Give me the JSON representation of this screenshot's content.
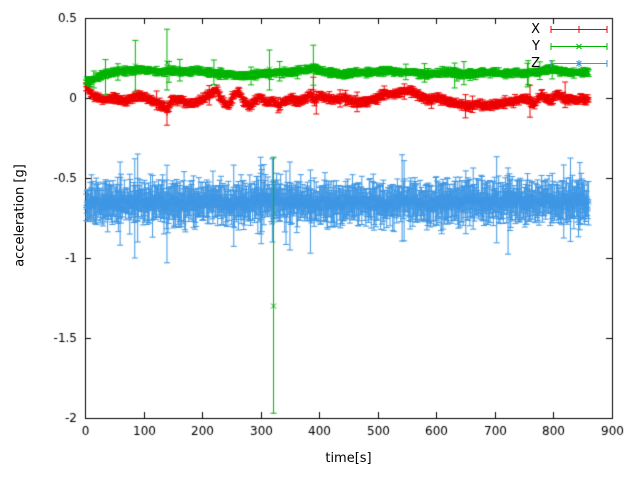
{
  "chart_data": {
    "type": "scatter",
    "style": "points with errorbars",
    "title": "",
    "xlabel": "time[s]",
    "ylabel": "acceleration [g]",
    "xlim": [
      0,
      900
    ],
    "ylim": [
      -2,
      0.5
    ],
    "xticks": {
      "values": [
        0,
        100,
        200,
        300,
        400,
        500,
        600,
        700,
        800,
        900
      ],
      "labels": [
        "0",
        "100",
        "200",
        "300",
        "400",
        "500",
        "600",
        "700",
        "800",
        "900"
      ]
    },
    "yticks": {
      "values": [
        0.5,
        0,
        -0.5,
        -1,
        -1.5,
        -2
      ],
      "labels": [
        "0.5",
        "0",
        "-0.5",
        "-1",
        "-1.5",
        "-2"
      ]
    },
    "grid": false,
    "legend_position": "top-right-inside",
    "axis_color": "#000000",
    "background": "#ffffff",
    "noise_seed": 1337,
    "t_start": 2,
    "t_end": 860,
    "series": [
      {
        "name": "X",
        "color": "#ee0000",
        "marker": "plus",
        "n_points": 650,
        "noise": 0.008,
        "err_base": 0.01,
        "err_spread": 0.02,
        "tail_prob": 0.04,
        "tail_extra": 0.05,
        "anchors": [
          [
            0,
            0.09
          ],
          [
            8,
            0.04
          ],
          [
            15,
            0.01
          ],
          [
            30,
            -0.01
          ],
          [
            50,
            0.0
          ],
          [
            70,
            -0.02
          ],
          [
            85,
            0.01
          ],
          [
            100,
            0.01
          ],
          [
            115,
            -0.02
          ],
          [
            130,
            -0.04
          ],
          [
            140,
            -0.07
          ],
          [
            150,
            -0.01
          ],
          [
            165,
            -0.02
          ],
          [
            180,
            -0.04
          ],
          [
            195,
            -0.02
          ],
          [
            210,
            0.02
          ],
          [
            225,
            0.05
          ],
          [
            235,
            -0.02
          ],
          [
            245,
            -0.05
          ],
          [
            255,
            0.02
          ],
          [
            262,
            0.04
          ],
          [
            270,
            -0.02
          ],
          [
            280,
            -0.05
          ],
          [
            292,
            -0.01
          ],
          [
            300,
            0.01
          ],
          [
            310,
            -0.03
          ],
          [
            320,
            -0.01
          ],
          [
            330,
            -0.05
          ],
          [
            340,
            -0.02
          ],
          [
            352,
            0.0
          ],
          [
            362,
            -0.02
          ],
          [
            375,
            -0.01
          ],
          [
            385,
            0.03
          ],
          [
            392,
            -0.02
          ],
          [
            400,
            0.02
          ],
          [
            410,
            0.0
          ],
          [
            425,
            -0.01
          ],
          [
            440,
            0.0
          ],
          [
            455,
            -0.02
          ],
          [
            470,
            -0.03
          ],
          [
            485,
            -0.02
          ],
          [
            500,
            0.0
          ],
          [
            512,
            0.03
          ],
          [
            525,
            0.02
          ],
          [
            540,
            0.04
          ],
          [
            555,
            0.05
          ],
          [
            565,
            0.03
          ],
          [
            575,
            0.0
          ],
          [
            590,
            -0.01
          ],
          [
            605,
            0.0
          ],
          [
            620,
            -0.02
          ],
          [
            638,
            -0.04
          ],
          [
            655,
            -0.05
          ],
          [
            670,
            -0.04
          ],
          [
            688,
            -0.05
          ],
          [
            702,
            -0.04
          ],
          [
            715,
            -0.03
          ],
          [
            728,
            -0.02
          ],
          [
            742,
            -0.01
          ],
          [
            755,
            0.0
          ],
          [
            768,
            -0.04
          ],
          [
            778,
            0.02
          ],
          [
            788,
            0.0
          ],
          [
            797,
            -0.02
          ],
          [
            806,
            0.03
          ],
          [
            815,
            0.0
          ],
          [
            830,
            -0.01
          ],
          [
            845,
            -0.01
          ],
          [
            858,
            -0.01
          ]
        ],
        "outliers": [
          [
            140,
            -0.09,
            -0.17,
            -0.03
          ],
          [
            390,
            0.05,
            -0.02,
            0.13
          ],
          [
            395,
            -0.03,
            -0.1,
            0.04
          ],
          [
            760,
            -0.02,
            -0.12,
            0.08
          ],
          [
            820,
            0.02,
            -0.06,
            0.1
          ]
        ]
      },
      {
        "name": "Y",
        "color": "#00b400",
        "marker": "cross",
        "n_points": 650,
        "noise": 0.006,
        "err_base": 0.01,
        "err_spread": 0.018,
        "tail_prob": 0.03,
        "tail_extra": 0.06,
        "anchors": [
          [
            0,
            0.1
          ],
          [
            12,
            0.11
          ],
          [
            22,
            0.13
          ],
          [
            35,
            0.15
          ],
          [
            50,
            0.16
          ],
          [
            65,
            0.17
          ],
          [
            80,
            0.17
          ],
          [
            95,
            0.18
          ],
          [
            110,
            0.17
          ],
          [
            125,
            0.16
          ],
          [
            140,
            0.17
          ],
          [
            158,
            0.17
          ],
          [
            175,
            0.16
          ],
          [
            192,
            0.17
          ],
          [
            210,
            0.16
          ],
          [
            228,
            0.15
          ],
          [
            245,
            0.15
          ],
          [
            262,
            0.14
          ],
          [
            280,
            0.14
          ],
          [
            298,
            0.15
          ],
          [
            315,
            0.15
          ],
          [
            332,
            0.16
          ],
          [
            350,
            0.16
          ],
          [
            368,
            0.17
          ],
          [
            382,
            0.18
          ],
          [
            392,
            0.19
          ],
          [
            402,
            0.17
          ],
          [
            418,
            0.16
          ],
          [
            435,
            0.15
          ],
          [
            452,
            0.15
          ],
          [
            470,
            0.16
          ],
          [
            488,
            0.16
          ],
          [
            505,
            0.17
          ],
          [
            522,
            0.17
          ],
          [
            540,
            0.16
          ],
          [
            558,
            0.16
          ],
          [
            575,
            0.15
          ],
          [
            592,
            0.15
          ],
          [
            610,
            0.16
          ],
          [
            628,
            0.16
          ],
          [
            645,
            0.15
          ],
          [
            662,
            0.15
          ],
          [
            680,
            0.16
          ],
          [
            698,
            0.16
          ],
          [
            715,
            0.15
          ],
          [
            732,
            0.16
          ],
          [
            748,
            0.15
          ],
          [
            765,
            0.16
          ],
          [
            780,
            0.17
          ],
          [
            795,
            0.18
          ],
          [
            810,
            0.17
          ],
          [
            825,
            0.16
          ],
          [
            842,
            0.16
          ],
          [
            858,
            0.16
          ]
        ],
        "outliers": [
          [
            35,
            0.13,
            0.02,
            0.24
          ],
          [
            86,
            0.2,
            0.04,
            0.36
          ],
          [
            140,
            0.22,
            0.05,
            0.43
          ],
          [
            315,
            0.18,
            0.05,
            0.3
          ],
          [
            322,
            -1.3,
            -1.97,
            -0.37
          ],
          [
            390,
            0.2,
            0.08,
            0.33
          ]
        ]
      },
      {
        "name": "Z",
        "color": "#3f97e4",
        "marker": "star",
        "n_points": 750,
        "noise": 0.035,
        "err_base": 0.05,
        "err_spread": 0.09,
        "tail_prob": 0.06,
        "tail_extra": 0.18,
        "anchors": [
          [
            0,
            -0.66
          ],
          [
            30,
            -0.655
          ],
          [
            60,
            -0.66
          ],
          [
            90,
            -0.65
          ],
          [
            120,
            -0.66
          ],
          [
            150,
            -0.66
          ],
          [
            180,
            -0.655
          ],
          [
            210,
            -0.65
          ],
          [
            240,
            -0.655
          ],
          [
            270,
            -0.66
          ],
          [
            300,
            -0.64
          ],
          [
            320,
            -0.63
          ],
          [
            345,
            -0.65
          ],
          [
            370,
            -0.66
          ],
          [
            395,
            -0.665
          ],
          [
            420,
            -0.66
          ],
          [
            450,
            -0.655
          ],
          [
            480,
            -0.65
          ],
          [
            510,
            -0.66
          ],
          [
            540,
            -0.655
          ],
          [
            570,
            -0.65
          ],
          [
            600,
            -0.66
          ],
          [
            630,
            -0.65
          ],
          [
            660,
            -0.64
          ],
          [
            690,
            -0.65
          ],
          [
            720,
            -0.645
          ],
          [
            750,
            -0.65
          ],
          [
            780,
            -0.645
          ],
          [
            810,
            -0.65
          ],
          [
            840,
            -0.65
          ],
          [
            858,
            -0.648
          ]
        ],
        "outliers": [
          [
            60,
            -0.65,
            -0.92,
            -0.4
          ],
          [
            85,
            -0.66,
            -1.0,
            -0.38
          ],
          [
            90,
            -0.6,
            -0.9,
            -0.35
          ],
          [
            140,
            -0.68,
            -1.03,
            -0.42
          ],
          [
            300,
            -0.6,
            -0.85,
            -0.37
          ],
          [
            320,
            -0.62,
            -0.9,
            -0.38
          ],
          [
            350,
            -0.65,
            -0.95,
            -0.4
          ],
          [
            385,
            -0.7,
            -0.97,
            -0.45
          ]
        ]
      }
    ]
  }
}
